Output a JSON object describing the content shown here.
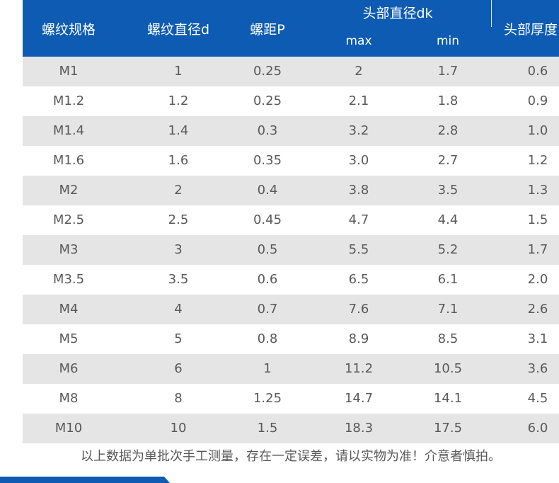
{
  "table": {
    "headers": {
      "spec": "螺纹规格",
      "diameter": "螺纹直径d",
      "pitch": "螺距P",
      "head_diameter": "头部直径dk",
      "head_diameter_max": "max",
      "head_diameter_min": "min",
      "head_thickness": "头部厚度"
    },
    "rows": [
      [
        "M1",
        "1",
        "0.25",
        "2",
        "1.7",
        "0.6"
      ],
      [
        "M1.2",
        "1.2",
        "0.25",
        "2.1",
        "1.8",
        "0.9"
      ],
      [
        "M1.4",
        "1.4",
        "0.3",
        "3.2",
        "2.8",
        "1.0"
      ],
      [
        "M1.6",
        "1.6",
        "0.35",
        "3.0",
        "2.7",
        "1.2"
      ],
      [
        "M2",
        "2",
        "0.4",
        "3.8",
        "3.5",
        "1.3"
      ],
      [
        "M2.5",
        "2.5",
        "0.45",
        "4.7",
        "4.4",
        "1.5"
      ],
      [
        "M3",
        "3",
        "0.5",
        "5.5",
        "5.2",
        "1.7"
      ],
      [
        "M3.5",
        "3.5",
        "0.6",
        "6.5",
        "6.1",
        "2.0"
      ],
      [
        "M4",
        "4",
        "0.7",
        "7.6",
        "7.1",
        "2.6"
      ],
      [
        "M5",
        "5",
        "0.8",
        "8.9",
        "8.5",
        "3.1"
      ],
      [
        "M6",
        "6",
        "1",
        "11.2",
        "10.5",
        "3.6"
      ],
      [
        "M8",
        "8",
        "1.25",
        "14.7",
        "14.1",
        "4.5"
      ],
      [
        "M10",
        "10",
        "1.5",
        "18.3",
        "17.5",
        "6.0"
      ]
    ]
  },
  "footnote": "以上数据为单批次手工测量，存在一定误差，请以实物为准！介意者慎拍。",
  "colors": {
    "header_bg": "#0d5bb2",
    "header_text": "#ffffff",
    "row_shade": "#e5e5e5",
    "body_text": "#595959"
  }
}
